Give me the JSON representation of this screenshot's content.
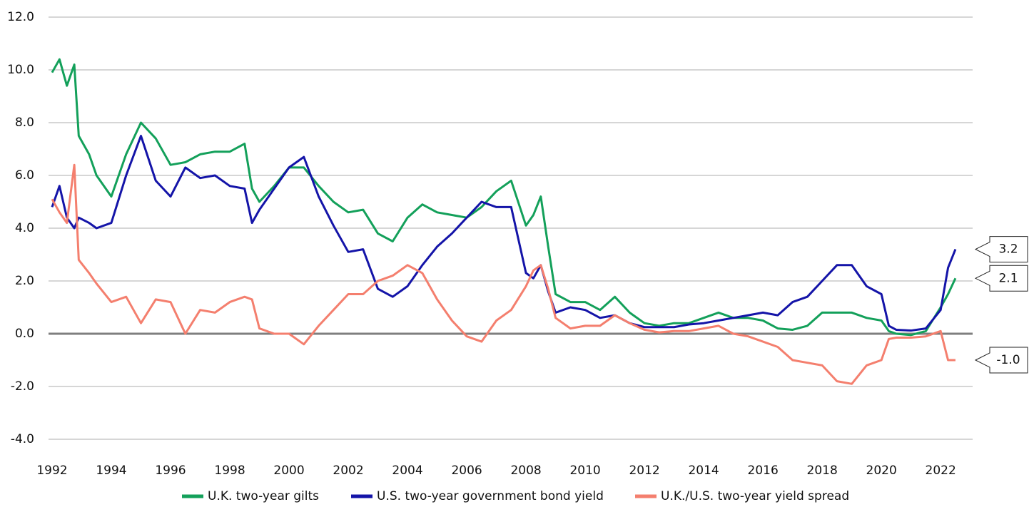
{
  "chart_data": {
    "type": "line",
    "x": [
      1992,
      1992.25,
      1992.5,
      1992.75,
      1992.9,
      1993.25,
      1993.5,
      1994,
      1994.5,
      1995,
      1995.5,
      1996,
      1996.5,
      1997,
      1997.5,
      1998,
      1998.5,
      1998.75,
      1999,
      1999.5,
      2000,
      2000.5,
      2001,
      2001.5,
      2002,
      2002.5,
      2003,
      2003.5,
      2004,
      2004.5,
      2005,
      2005.5,
      2006,
      2006.5,
      2007,
      2007.5,
      2008,
      2008.25,
      2008.5,
      2008.75,
      2009,
      2009.5,
      2010,
      2010.5,
      2011,
      2011.5,
      2012,
      2012.5,
      2013,
      2013.5,
      2014,
      2014.5,
      2015,
      2015.5,
      2016,
      2016.5,
      2017,
      2017.5,
      2018,
      2018.5,
      2019,
      2019.5,
      2020,
      2020.25,
      2020.5,
      2021,
      2021.5,
      2022,
      2022.25,
      2022.5
    ],
    "series": [
      {
        "name": "U.K. two-year gilts",
        "color": "#13a05a",
        "end_label": "2.1",
        "values": [
          9.9,
          10.4,
          9.4,
          10.2,
          7.5,
          6.8,
          6.0,
          5.2,
          6.8,
          8.0,
          7.4,
          6.4,
          6.5,
          6.8,
          6.9,
          6.9,
          7.2,
          5.5,
          5.0,
          5.6,
          6.3,
          6.3,
          5.6,
          5.0,
          4.6,
          4.7,
          3.8,
          3.5,
          4.4,
          4.9,
          4.6,
          4.5,
          4.4,
          4.8,
          5.4,
          5.8,
          4.1,
          4.5,
          5.2,
          3.3,
          1.5,
          1.2,
          1.2,
          0.9,
          1.4,
          0.8,
          0.4,
          0.3,
          0.4,
          0.4,
          0.6,
          0.8,
          0.6,
          0.6,
          0.5,
          0.2,
          0.15,
          0.3,
          0.8,
          0.8,
          0.8,
          0.6,
          0.5,
          0.1,
          0.0,
          -0.05,
          0.1,
          1.0,
          1.5,
          2.1
        ]
      },
      {
        "name": "U.S. two-year government bond yield",
        "color": "#1414a8",
        "end_label": "3.2",
        "values": [
          4.8,
          5.6,
          4.4,
          4.0,
          4.4,
          4.2,
          4.0,
          4.2,
          6.0,
          7.5,
          5.8,
          5.2,
          6.3,
          5.9,
          6.0,
          5.6,
          5.5,
          4.2,
          4.7,
          5.5,
          6.3,
          6.7,
          5.2,
          4.1,
          3.1,
          3.2,
          1.7,
          1.4,
          1.8,
          2.6,
          3.3,
          3.8,
          4.4,
          5.0,
          4.8,
          4.8,
          2.3,
          2.1,
          2.6,
          1.6,
          0.8,
          1.0,
          0.9,
          0.6,
          0.7,
          0.4,
          0.25,
          0.25,
          0.25,
          0.35,
          0.4,
          0.5,
          0.6,
          0.7,
          0.8,
          0.7,
          1.2,
          1.4,
          2.0,
          2.6,
          2.6,
          1.8,
          1.5,
          0.3,
          0.15,
          0.12,
          0.2,
          0.9,
          2.5,
          3.2
        ]
      },
      {
        "name": "U.K./U.S. two-year yield spread",
        "color": "#f47f6e",
        "end_label": "-1.0",
        "values": [
          5.1,
          4.6,
          4.2,
          6.4,
          2.8,
          2.3,
          1.9,
          1.2,
          1.4,
          0.4,
          1.3,
          1.2,
          0.0,
          0.9,
          0.8,
          1.2,
          1.4,
          1.3,
          0.2,
          0.0,
          0.0,
          -0.4,
          0.3,
          0.9,
          1.5,
          1.5,
          2.0,
          2.2,
          2.6,
          2.3,
          1.3,
          0.5,
          -0.1,
          -0.3,
          0.5,
          0.9,
          1.8,
          2.4,
          2.6,
          1.7,
          0.6,
          0.2,
          0.3,
          0.3,
          0.7,
          0.4,
          0.15,
          0.05,
          0.1,
          0.1,
          0.2,
          0.3,
          0.0,
          -0.1,
          -0.3,
          -0.5,
          -1.0,
          -1.1,
          -1.2,
          -1.8,
          -1.9,
          -1.2,
          -1.0,
          -0.2,
          -0.15,
          -0.15,
          -0.1,
          0.1,
          -1.0,
          -1.0
        ]
      }
    ],
    "xlim": [
      1991.88,
      2023.08
    ],
    "xticks": [
      1992,
      1994,
      1996,
      1998,
      2000,
      2002,
      2004,
      2006,
      2008,
      2010,
      2012,
      2014,
      2016,
      2018,
      2020,
      2022
    ],
    "ylim": [
      -4,
      12
    ],
    "yticks": [
      {
        "value": -4,
        "label": "-4.0"
      },
      {
        "value": -2,
        "label": "-2.0"
      },
      {
        "value": 0,
        "label": "0.0"
      },
      {
        "value": 2,
        "label": "2.0"
      },
      {
        "value": 4,
        "label": "4.0"
      },
      {
        "value": 6,
        "label": "6.0"
      },
      {
        "value": 8,
        "label": "8.0"
      },
      {
        "value": 10,
        "label": "10.0"
      },
      {
        "value": 12,
        "label": "12.0"
      }
    ],
    "grid": true,
    "legend": "bottom"
  }
}
